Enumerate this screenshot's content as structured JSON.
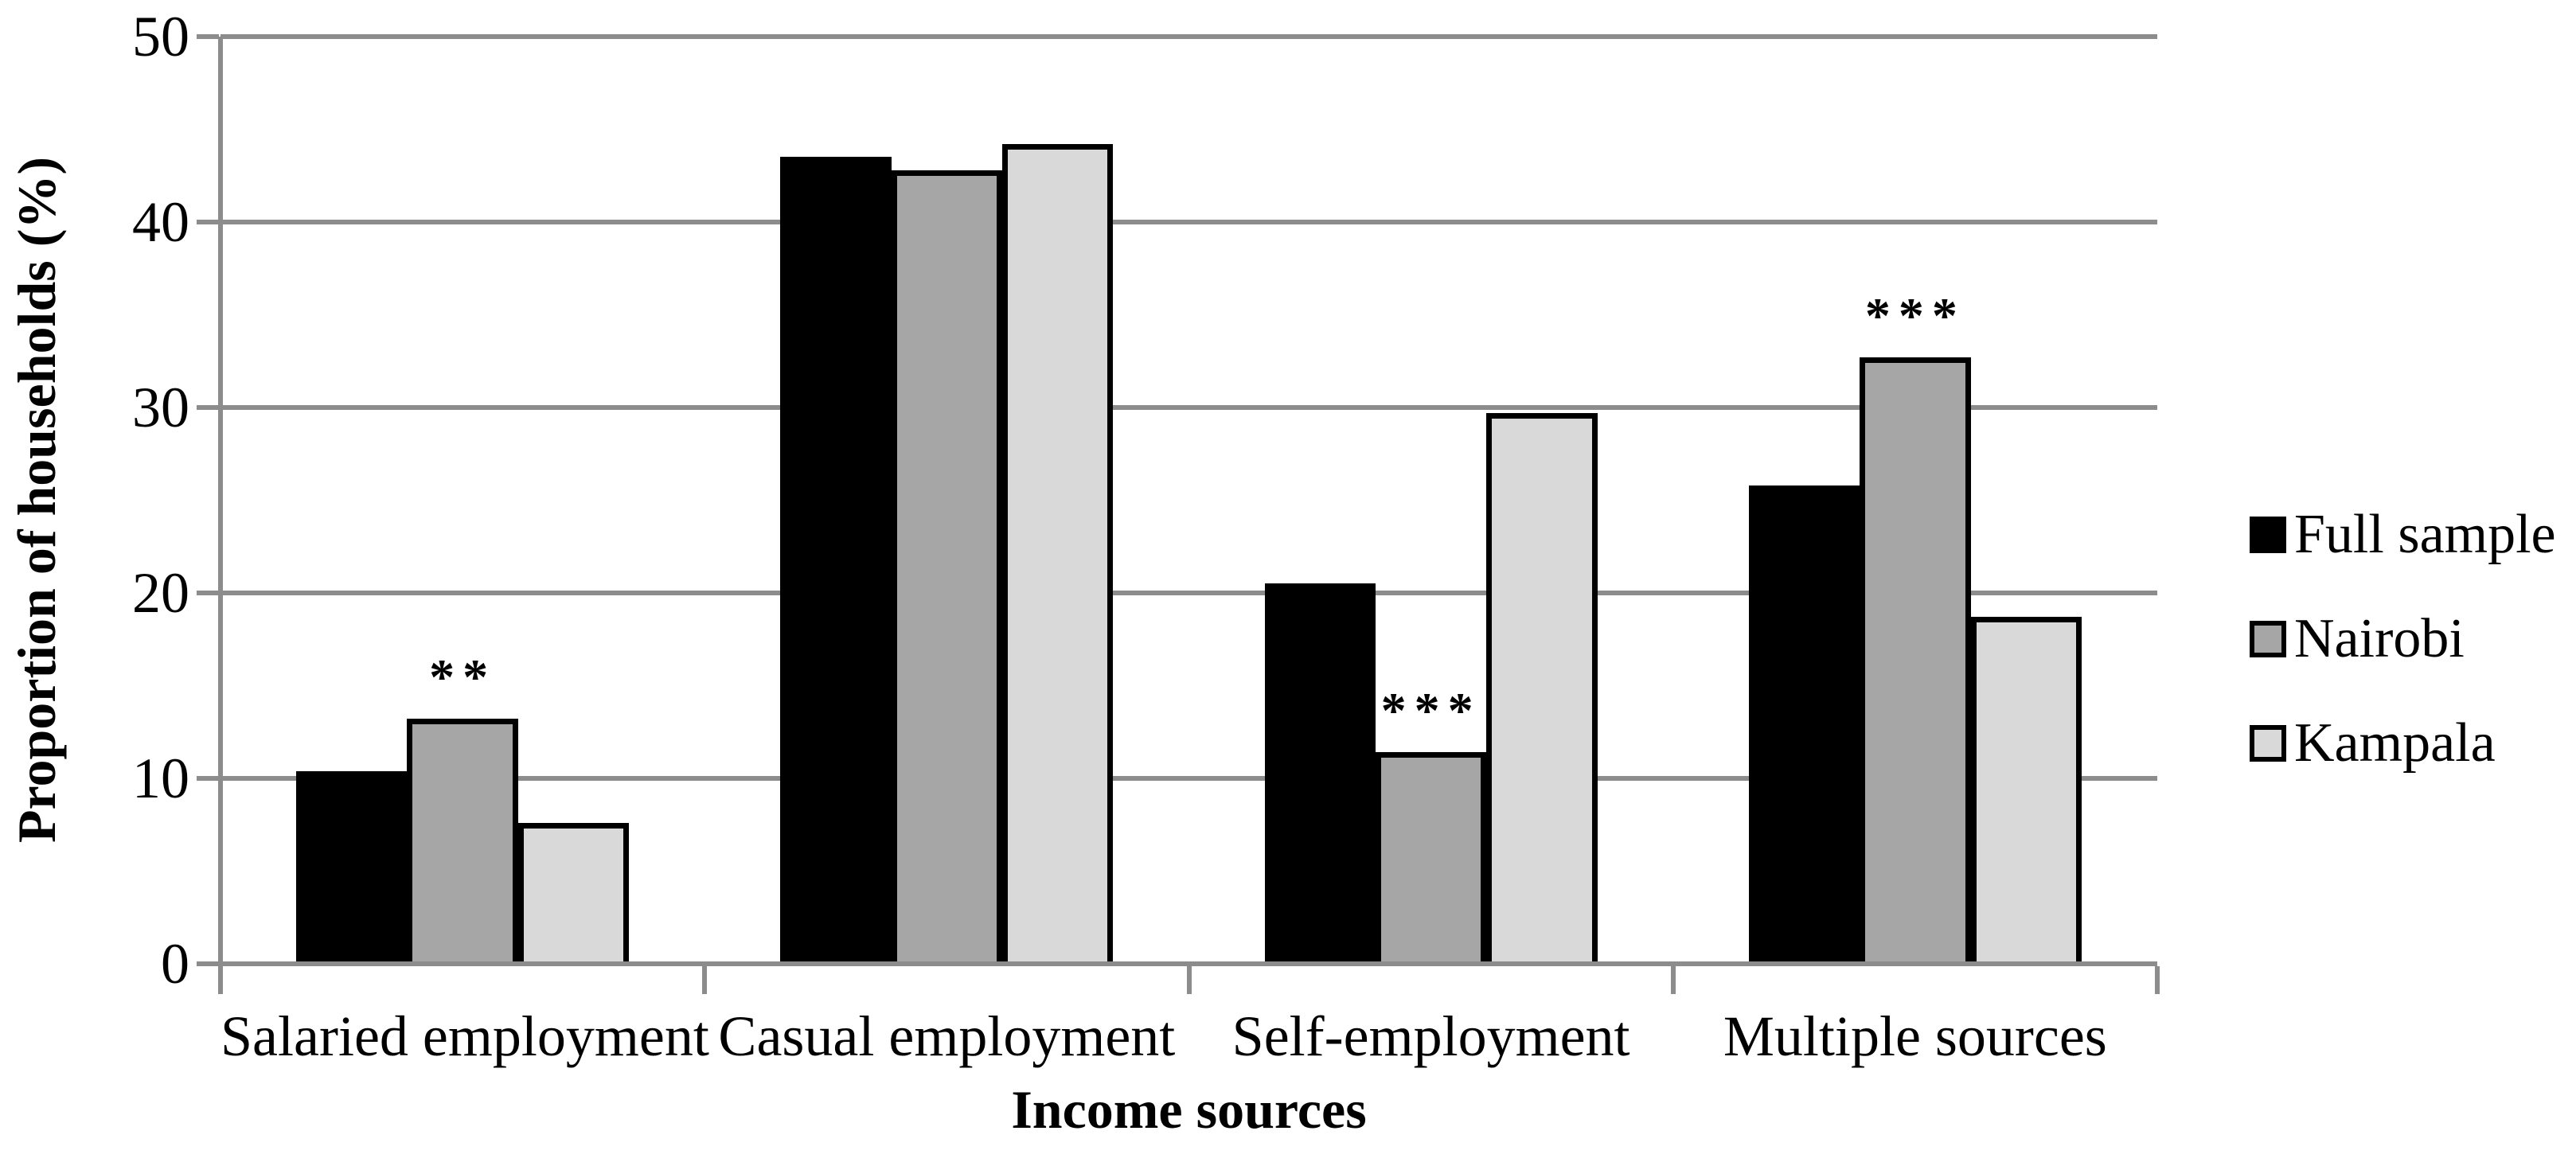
{
  "figure": {
    "background": "#ffffff"
  },
  "chart_data": {
    "type": "bar",
    "title": "",
    "xlabel": "Income sources",
    "ylabel": "Proportion of households (%)",
    "ylim": [
      0,
      50
    ],
    "yticks": [
      0,
      10,
      20,
      30,
      40,
      50
    ],
    "categories": [
      "Salaried employment",
      "Casual employment",
      "Self-employment",
      "Multiple sources"
    ],
    "series": [
      {
        "name": "Full sample",
        "color": "#000000",
        "values": [
          10.4,
          43.5,
          20.5,
          25.8
        ]
      },
      {
        "name": "Nairobi",
        "color": "#a6a6a6",
        "values": [
          13.2,
          42.8,
          11.4,
          32.7
        ]
      },
      {
        "name": "Kampala",
        "color": "#d9d9d9",
        "values": [
          7.6,
          44.2,
          29.7,
          18.7
        ]
      }
    ],
    "annotations": [
      {
        "category_index": 0,
        "above_series": "Nairobi",
        "text": "**"
      },
      {
        "category_index": 2,
        "above_series": "Nairobi",
        "text": "***"
      },
      {
        "category_index": 3,
        "above_series": "Nairobi",
        "text": "***"
      }
    ],
    "grid": true,
    "legend_position": "right",
    "colors": {
      "gridline": "#8c8c8c",
      "axis": "#8c8c8c",
      "bar_border": "#000000",
      "background": "#ffffff"
    }
  }
}
